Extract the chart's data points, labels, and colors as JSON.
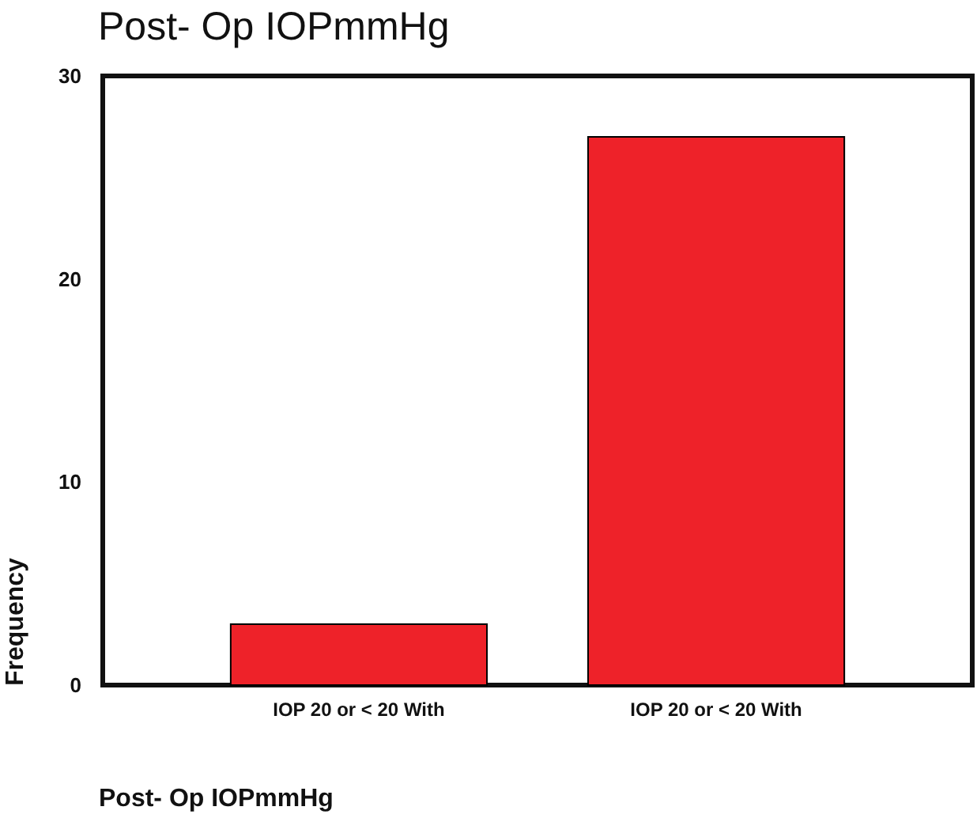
{
  "chart_data": {
    "type": "bar",
    "title": "Post- Op IOPmmHg",
    "xlabel": "Post- Op IOPmmHg",
    "ylabel": "Frequency",
    "categories": [
      "IOP 20 or < 20 With",
      "IOP 20 or < 20 With"
    ],
    "values": [
      3,
      27
    ],
    "color": "#ee2229",
    "ylim": [
      0,
      30
    ],
    "yticks": [
      0,
      10,
      20,
      30
    ],
    "grid": false
  }
}
